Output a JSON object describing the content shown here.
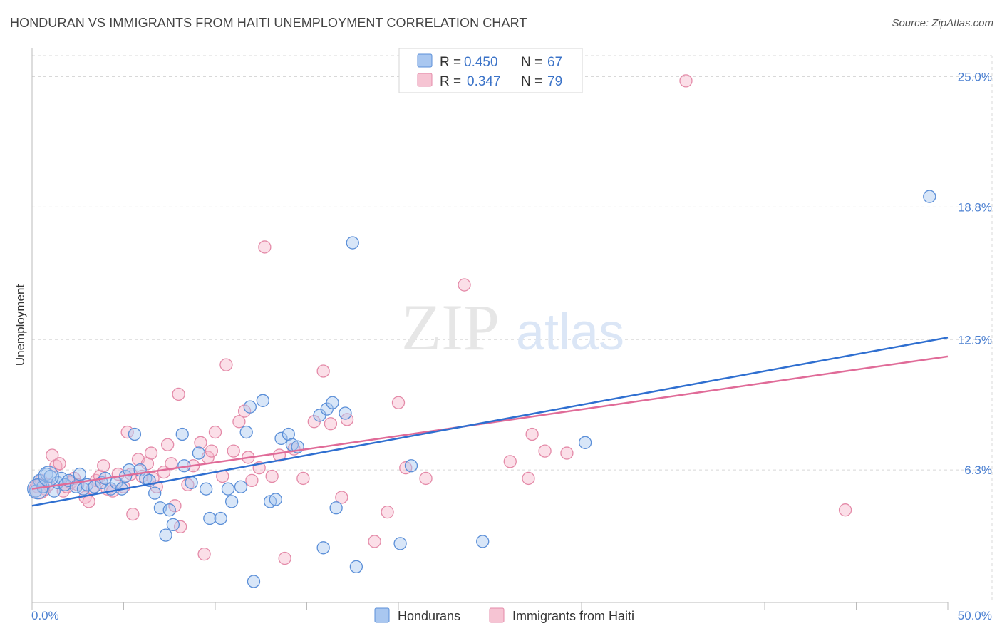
{
  "title": "HONDURAN VS IMMIGRANTS FROM HAITI UNEMPLOYMENT CORRELATION CHART",
  "source": "Source: ZipAtlas.com",
  "watermark": {
    "zip": "ZIP",
    "atlas": "atlas"
  },
  "colors": {
    "blue_fill": "#a9c7f0",
    "blue_stroke": "#5b8fd8",
    "blue_line": "#2f6fd0",
    "pink_fill": "#f6b9cc",
    "pink_stroke": "#e48aa8",
    "pink_line": "#e06b98",
    "grid": "#d8d8d8",
    "axis_text": "#4a7fd1"
  },
  "chart_data": {
    "type": "scatter",
    "title": "HONDURAN VS IMMIGRANTS FROM HAITI UNEMPLOYMENT CORRELATION CHART",
    "ylabel": "Unemployment",
    "xlabel": "",
    "xlim": [
      0,
      50
    ],
    "ylim": [
      0,
      26
    ],
    "x_tick_labels": [
      "0.0%",
      "50.0%"
    ],
    "y_ticks": [
      6.3,
      12.5,
      18.8,
      25.0
    ],
    "y_tick_labels": [
      "6.3%",
      "12.5%",
      "18.8%",
      "25.0%"
    ],
    "legend": [
      {
        "name": "Hondurans",
        "r_label": "R =",
        "r": "0.450",
        "n_label": "N =",
        "n": "67"
      },
      {
        "name": "Immigrants from Haiti",
        "r_label": "R =",
        "r": "0.347",
        "n_label": "N =",
        "n": "79"
      }
    ],
    "series": [
      {
        "name": "Hondurans",
        "color": "#5b8fd8",
        "trend": {
          "x": [
            0,
            50
          ],
          "y": [
            4.6,
            12.6
          ]
        },
        "points": [
          [
            0.2,
            5.3
          ],
          [
            0.4,
            5.8
          ],
          [
            0.6,
            5.5
          ],
          [
            0.8,
            6.1
          ],
          [
            1.0,
            6.0
          ],
          [
            1.2,
            5.3
          ],
          [
            1.4,
            5.7
          ],
          [
            1.6,
            5.9
          ],
          [
            1.8,
            5.6
          ],
          [
            2.0,
            5.8
          ],
          [
            2.4,
            5.5
          ],
          [
            2.6,
            6.1
          ],
          [
            2.8,
            5.4
          ],
          [
            3.0,
            5.6
          ],
          [
            3.4,
            5.5
          ],
          [
            3.8,
            5.7
          ],
          [
            4.0,
            5.9
          ],
          [
            4.3,
            5.4
          ],
          [
            4.6,
            5.7
          ],
          [
            4.9,
            5.4
          ],
          [
            5.1,
            6.0
          ],
          [
            5.3,
            6.3
          ],
          [
            5.6,
            8.0
          ],
          [
            5.9,
            6.3
          ],
          [
            6.2,
            5.9
          ],
          [
            6.4,
            5.8
          ],
          [
            6.7,
            5.2
          ],
          [
            7.0,
            4.5
          ],
          [
            7.3,
            3.2
          ],
          [
            7.5,
            4.4
          ],
          [
            7.7,
            3.7
          ],
          [
            8.2,
            8.0
          ],
          [
            8.3,
            6.5
          ],
          [
            8.7,
            5.7
          ],
          [
            9.1,
            7.1
          ],
          [
            9.5,
            5.4
          ],
          [
            9.7,
            4.0
          ],
          [
            10.3,
            4.0
          ],
          [
            10.7,
            5.4
          ],
          [
            10.9,
            4.8
          ],
          [
            11.4,
            5.5
          ],
          [
            11.7,
            8.1
          ],
          [
            11.9,
            9.3
          ],
          [
            12.1,
            1.0
          ],
          [
            12.6,
            9.6
          ],
          [
            13.0,
            4.8
          ],
          [
            13.3,
            4.9
          ],
          [
            13.6,
            7.8
          ],
          [
            14.0,
            8.0
          ],
          [
            14.2,
            7.5
          ],
          [
            14.5,
            7.4
          ],
          [
            15.7,
            8.9
          ],
          [
            15.9,
            2.6
          ],
          [
            16.1,
            9.2
          ],
          [
            16.4,
            9.5
          ],
          [
            16.6,
            4.5
          ],
          [
            17.1,
            9.0
          ],
          [
            17.5,
            17.1
          ],
          [
            17.7,
            1.7
          ],
          [
            20.1,
            2.8
          ],
          [
            20.7,
            6.5
          ],
          [
            24.6,
            2.9
          ],
          [
            30.2,
            7.6
          ],
          [
            49.0,
            19.3
          ]
        ],
        "large_points": [
          [
            0.3,
            5.4
          ],
          [
            0.9,
            6.0
          ]
        ]
      },
      {
        "name": "Immigrants from Haiti",
        "color": "#e48aa8",
        "trend": {
          "x": [
            0,
            50
          ],
          "y": [
            5.4,
            11.7
          ]
        },
        "points": [
          [
            0.3,
            5.5
          ],
          [
            0.5,
            5.8
          ],
          [
            0.7,
            5.4
          ],
          [
            0.9,
            5.6
          ],
          [
            1.1,
            7.0
          ],
          [
            1.3,
            6.5
          ],
          [
            1.5,
            6.6
          ],
          [
            1.7,
            5.3
          ],
          [
            1.9,
            5.5
          ],
          [
            2.1,
            5.7
          ],
          [
            2.3,
            5.9
          ],
          [
            2.5,
            5.6
          ],
          [
            2.9,
            5.0
          ],
          [
            3.1,
            4.8
          ],
          [
            3.3,
            5.4
          ],
          [
            3.5,
            5.8
          ],
          [
            3.7,
            6.0
          ],
          [
            3.9,
            6.5
          ],
          [
            4.1,
            5.4
          ],
          [
            4.4,
            5.3
          ],
          [
            4.7,
            6.1
          ],
          [
            5.0,
            5.5
          ],
          [
            5.2,
            8.1
          ],
          [
            5.4,
            6.1
          ],
          [
            5.5,
            4.2
          ],
          [
            5.8,
            6.8
          ],
          [
            6.0,
            6.0
          ],
          [
            6.3,
            6.6
          ],
          [
            6.5,
            7.1
          ],
          [
            6.6,
            5.9
          ],
          [
            6.8,
            5.5
          ],
          [
            7.2,
            6.2
          ],
          [
            7.4,
            7.5
          ],
          [
            7.6,
            6.6
          ],
          [
            7.8,
            4.6
          ],
          [
            8.0,
            9.9
          ],
          [
            8.1,
            3.6
          ],
          [
            8.5,
            5.6
          ],
          [
            8.8,
            6.5
          ],
          [
            9.2,
            7.6
          ],
          [
            9.4,
            2.3
          ],
          [
            9.6,
            6.9
          ],
          [
            9.8,
            7.2
          ],
          [
            10.0,
            8.1
          ],
          [
            10.4,
            6.0
          ],
          [
            10.6,
            11.3
          ],
          [
            11.0,
            7.2
          ],
          [
            11.3,
            8.6
          ],
          [
            11.6,
            9.1
          ],
          [
            11.8,
            6.9
          ],
          [
            12.0,
            5.8
          ],
          [
            12.4,
            6.4
          ],
          [
            12.7,
            16.9
          ],
          [
            13.1,
            6.0
          ],
          [
            13.5,
            7.0
          ],
          [
            13.8,
            2.1
          ],
          [
            14.3,
            7.3
          ],
          [
            14.8,
            5.9
          ],
          [
            15.4,
            8.6
          ],
          [
            15.9,
            11.0
          ],
          [
            16.3,
            8.5
          ],
          [
            16.9,
            5.0
          ],
          [
            17.2,
            8.7
          ],
          [
            18.7,
            2.9
          ],
          [
            19.4,
            4.3
          ],
          [
            20.0,
            9.5
          ],
          [
            20.4,
            6.4
          ],
          [
            21.5,
            5.9
          ],
          [
            23.6,
            15.1
          ],
          [
            26.1,
            6.7
          ],
          [
            27.1,
            5.9
          ],
          [
            27.3,
            8.0
          ],
          [
            28.0,
            7.2
          ],
          [
            29.2,
            7.1
          ],
          [
            35.7,
            24.8
          ],
          [
            44.4,
            4.4
          ]
        ],
        "large_points": [
          [
            0.4,
            5.4
          ]
        ]
      }
    ]
  }
}
